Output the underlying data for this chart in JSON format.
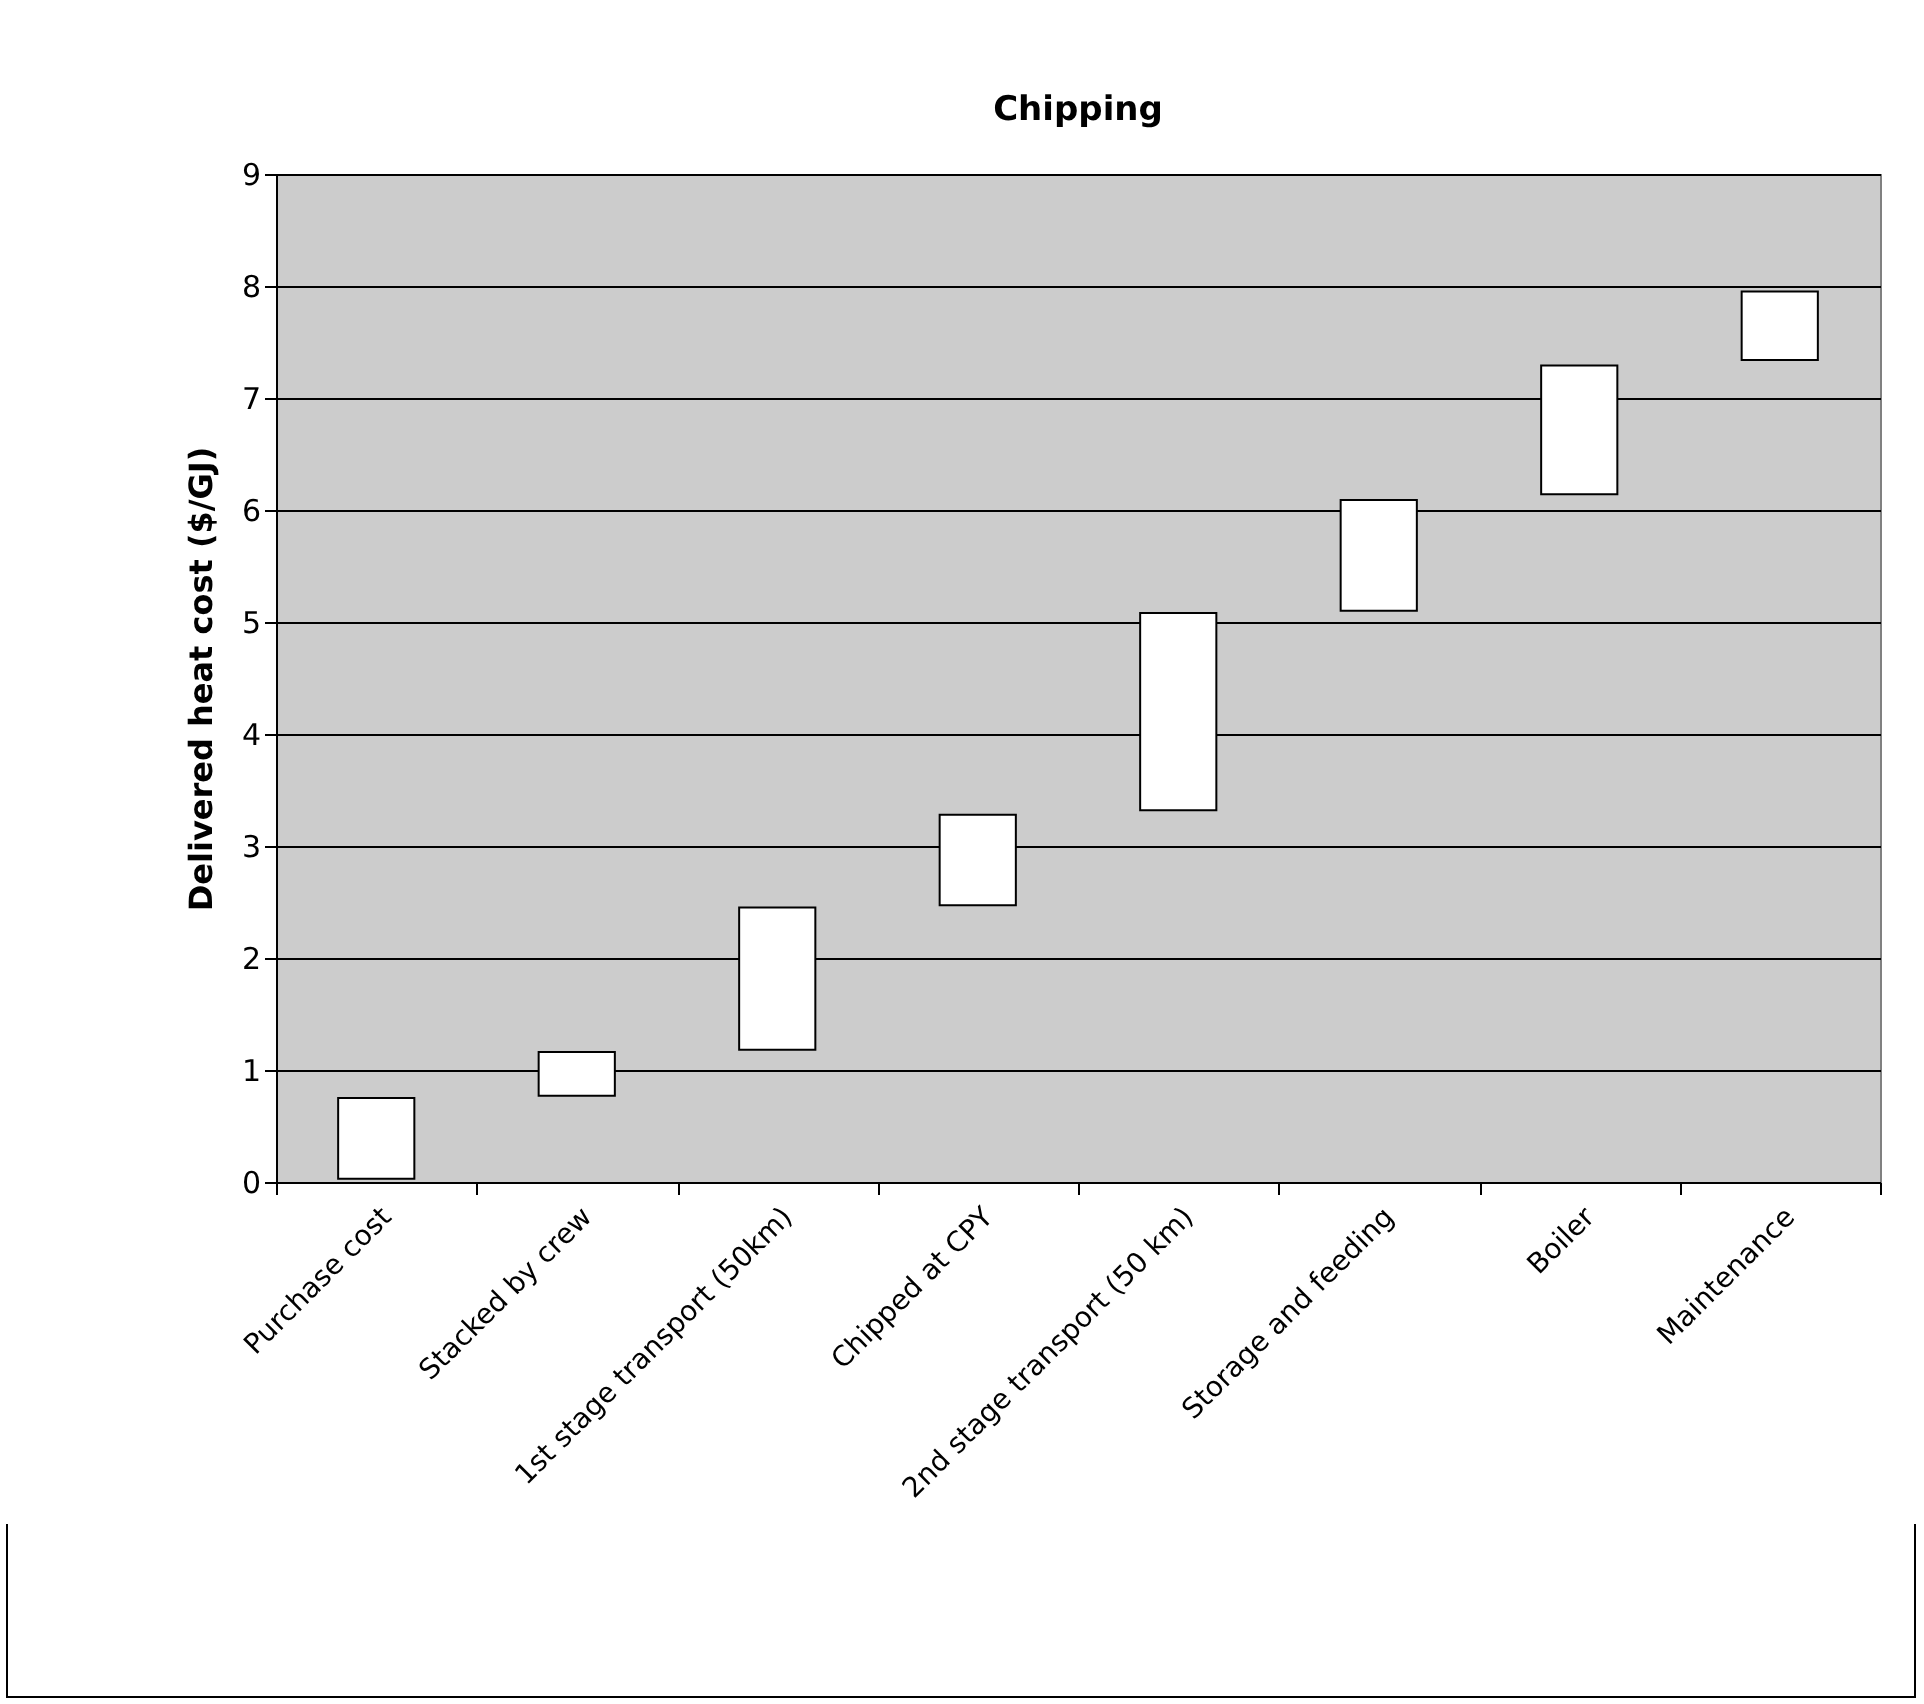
{
  "chart_data": {
    "type": "bar",
    "title": "Chipping",
    "ylabel": "Delivered heat cost ($/GJ)",
    "categories": [
      "Purchase cost",
      "Stacked by crew",
      "1st stage transport (50km)",
      "Chipped at CPY",
      "2nd stage transport (50 km)",
      "Storage and feeding",
      "Boiler",
      "Maintenance"
    ],
    "values": [
      0.72,
      0.39,
      1.27,
      0.81,
      1.76,
      0.99,
      1.15,
      0.61
    ],
    "base": [
      0.03,
      0.77,
      1.18,
      2.47,
      3.32,
      5.1,
      6.14,
      7.34
    ],
    "color": "#ffffff",
    "ylim": [
      0,
      9
    ],
    "yticks": [
      0,
      1,
      2,
      3,
      4,
      5,
      6,
      7,
      8,
      9
    ],
    "grid": "y"
  }
}
